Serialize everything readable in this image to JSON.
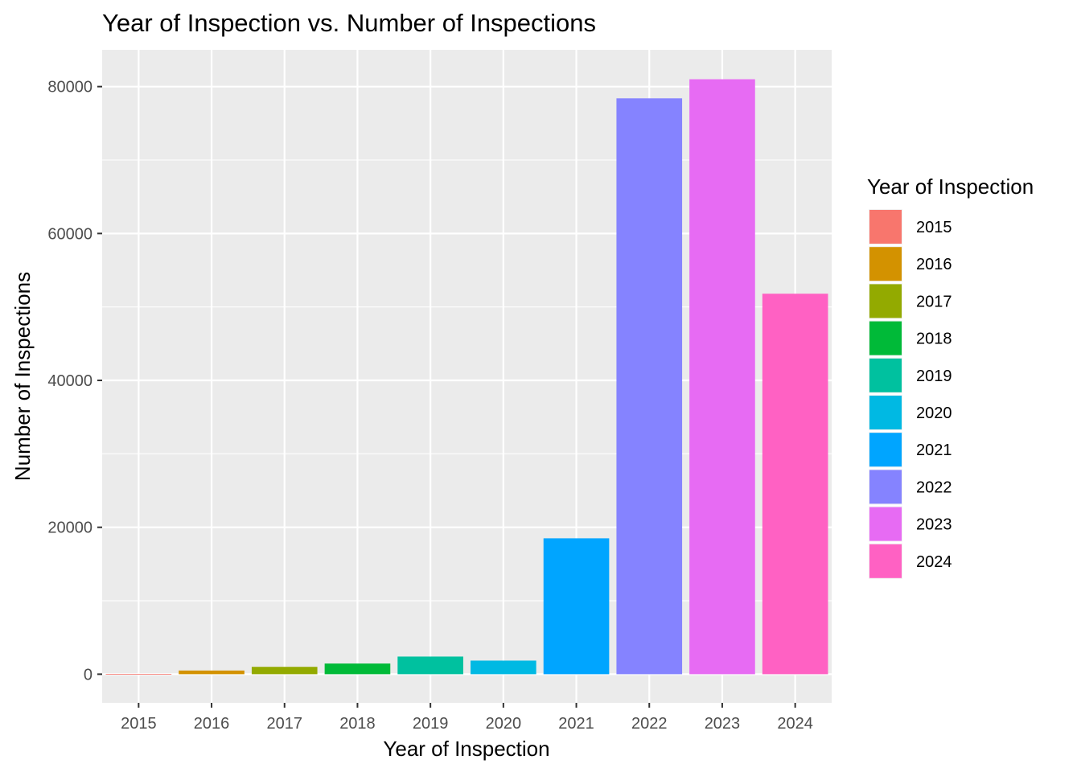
{
  "chart_data": {
    "type": "bar",
    "title": "Year of Inspection vs. Number of Inspections",
    "xlabel": "Year of Inspection",
    "ylabel": "Number of Inspections",
    "categories": [
      "2015",
      "2016",
      "2017",
      "2018",
      "2019",
      "2020",
      "2021",
      "2022",
      "2023",
      "2024"
    ],
    "values": [
      40,
      500,
      1000,
      1450,
      2400,
      1850,
      18500,
      78400,
      81000,
      51800
    ],
    "colors": [
      "#F8766D",
      "#D39200",
      "#93AA00",
      "#00BA38",
      "#00C19F",
      "#00B9E3",
      "#00A5FF",
      "#8583FF",
      "#E76BF3",
      "#FF61C3"
    ],
    "ylim": [
      -3900,
      85000
    ],
    "yticks": [
      0,
      20000,
      40000,
      60000,
      80000
    ],
    "grid": true,
    "panel_background": "#EBEBEB",
    "legend": {
      "title": "Year of Inspection",
      "position": "right"
    }
  }
}
